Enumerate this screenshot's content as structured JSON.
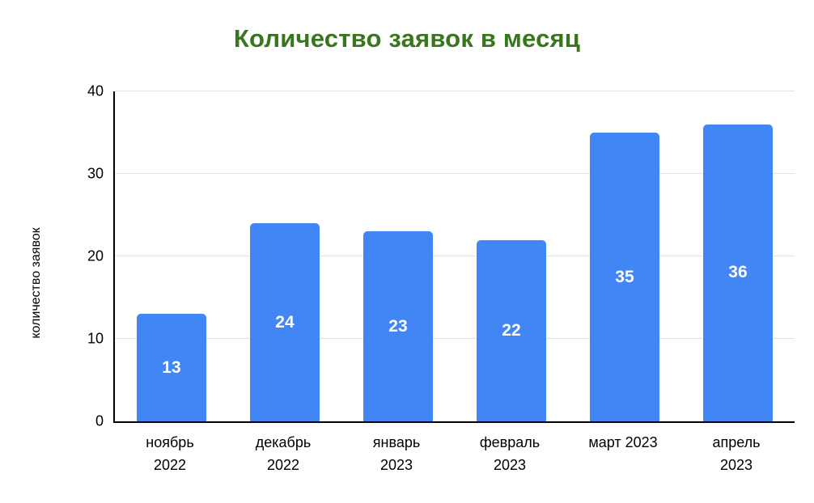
{
  "chart_data": {
    "type": "bar",
    "title": "Количество заявок в месяц",
    "xlabel": "",
    "ylabel": "количество заявок",
    "categories": [
      "ноябрь\n2022",
      "декабрь\n2022",
      "январь\n2023",
      "февраль\n2023",
      "март 2023",
      "апрель\n2023"
    ],
    "values": [
      13,
      24,
      23,
      22,
      35,
      36
    ],
    "ylim": [
      0,
      40
    ],
    "yticks": [
      0,
      10,
      20,
      30,
      40
    ],
    "grid": true,
    "legend": "none",
    "bar_color": "#4285f4",
    "value_label_color": "#ffffff",
    "title_color": "#38761d",
    "axis_color": "#000000",
    "gridline_color": "#e2e2e2"
  }
}
